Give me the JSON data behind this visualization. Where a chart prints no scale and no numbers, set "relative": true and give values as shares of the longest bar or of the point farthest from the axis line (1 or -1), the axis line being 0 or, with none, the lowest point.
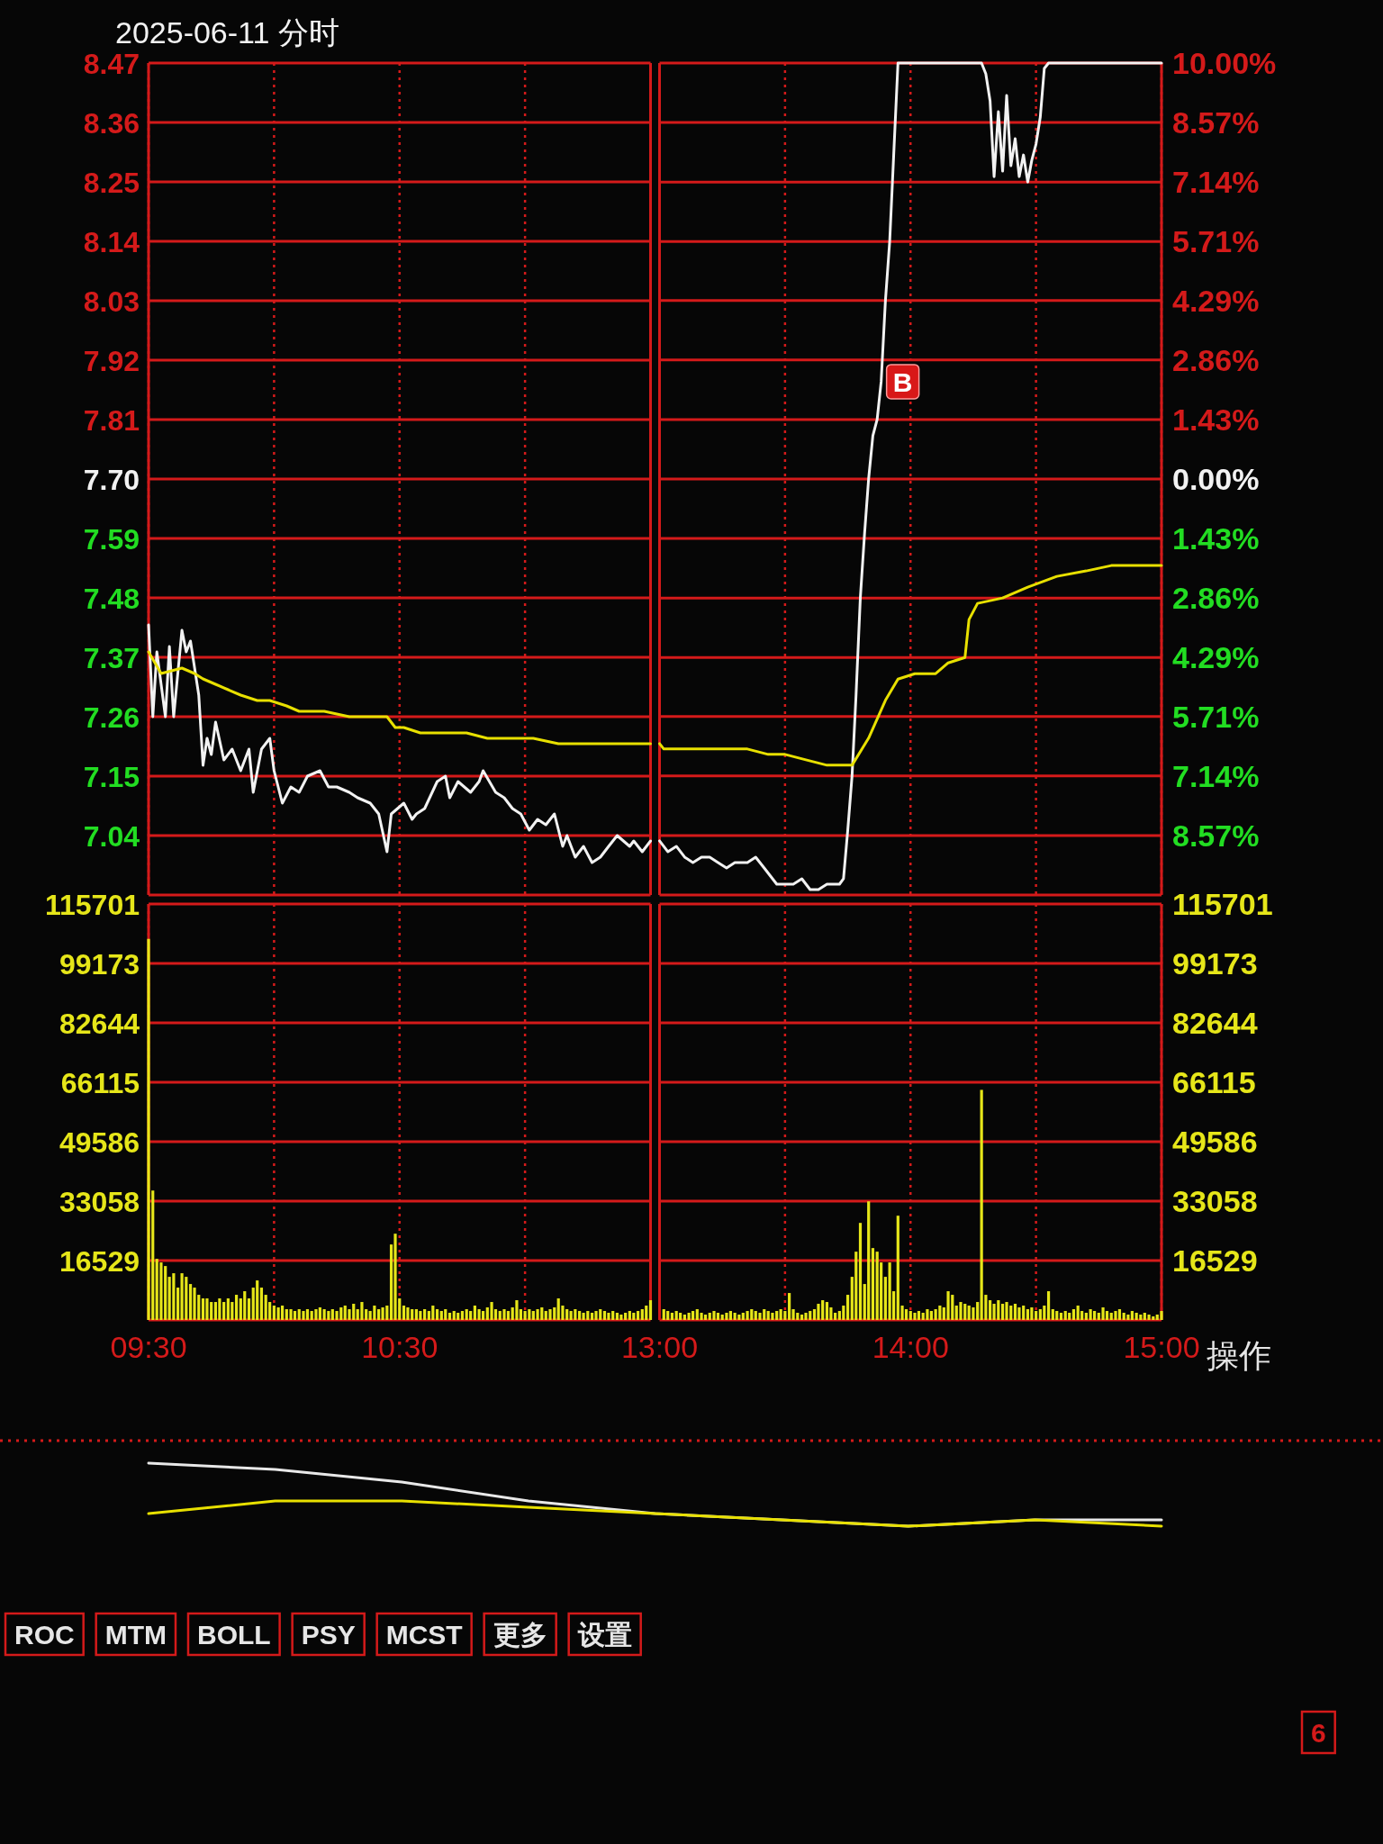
{
  "chart_data": [
    {
      "type": "line",
      "title": "2025-06-11 分时",
      "series": [
        {
          "color": "#f2f2f2",
          "x": [
            9.5,
            9.517,
            9.533,
            9.567,
            9.583,
            9.6,
            9.633,
            9.65,
            9.667,
            9.7,
            9.717,
            9.733,
            9.75,
            9.767,
            9.8,
            9.833,
            9.867,
            9.9,
            9.917,
            9.95,
            9.983,
            10,
            10.033,
            10.067,
            10.1,
            10.133,
            10.183,
            10.217,
            10.25,
            10.3,
            10.333,
            10.383,
            10.417,
            10.45,
            10.467,
            10.517,
            10.55,
            10.567,
            10.6,
            10.65,
            10.683,
            10.7,
            10.733,
            10.783,
            10.817,
            10.833,
            10.883,
            10.917,
            10.95,
            10.983,
            11.017,
            11.05,
            11.083,
            11.117,
            11.15,
            11.167,
            11.2,
            11.233,
            11.267,
            11.3,
            11.333,
            11.367,
            11.417,
            11.433,
            11.467,
            11.5
          ],
          "values": [
            7.43,
            7.26,
            7.38,
            7.26,
            7.39,
            7.26,
            7.42,
            7.38,
            7.4,
            7.3,
            7.17,
            7.22,
            7.19,
            7.25,
            7.18,
            7.2,
            7.16,
            7.2,
            7.12,
            7.2,
            7.22,
            7.16,
            7.1,
            7.13,
            7.12,
            7.15,
            7.16,
            7.13,
            7.13,
            7.12,
            7.11,
            7.1,
            7.08,
            7.01,
            7.08,
            7.1,
            7.07,
            7.08,
            7.09,
            7.14,
            7.15,
            7.11,
            7.14,
            7.12,
            7.14,
            7.16,
            7.12,
            7.11,
            7.09,
            7.08,
            7.05,
            7.07,
            7.06,
            7.08,
            7.02,
            7.04,
            7.0,
            7.02,
            6.99,
            7.0,
            7.02,
            7.04,
            7.02,
            7.03,
            7.01,
            7.03
          ]
        },
        {
          "color": "#e8e000",
          "x": [
            9.5,
            9.55,
            9.633,
            9.683,
            9.717,
            9.767,
            9.817,
            9.867,
            9.933,
            9.983,
            10.05,
            10.1,
            10.2,
            10.3,
            10.4,
            10.45,
            10.483,
            10.517,
            10.583,
            10.667,
            10.767,
            10.85,
            10.95,
            11.033,
            11.133,
            11.233,
            11.317,
            11.417,
            11.5
          ],
          "values": [
            7.38,
            7.34,
            7.35,
            7.34,
            7.33,
            7.32,
            7.31,
            7.3,
            7.29,
            7.29,
            7.28,
            7.27,
            7.27,
            7.26,
            7.26,
            7.26,
            7.24,
            7.24,
            7.23,
            7.23,
            7.23,
            7.22,
            7.22,
            7.22,
            7.21,
            7.21,
            7.21,
            7.21,
            7.21
          ]
        }
      ],
      "xlim": [
        9.5,
        11.5
      ],
      "xticks": [
        {
          "value": 9.5,
          "label": null
        },
        {
          "value": 10,
          "label": null
        },
        {
          "value": 10.5,
          "label": null
        },
        {
          "value": 11,
          "label": null
        }
      ],
      "ylim": [
        6.93,
        8.47
      ],
      "yticks": [
        8.47,
        8.36,
        8.25,
        8.14,
        8.03,
        7.92,
        7.81,
        {
          "value": 7.7,
          "label": "7.70"
        },
        7.59,
        7.48,
        7.37,
        7.26,
        7.15,
        7.04,
        {
          "value": 6.93,
          "label": null
        }
      ],
      "grid": true,
      "tick_labels": "y"
    },
    {
      "type": "line",
      "series": [
        {
          "color": "#f2f2f2",
          "x": [
            13,
            13.033,
            13.067,
            13.1,
            13.133,
            13.167,
            13.2,
            13.233,
            13.267,
            13.3,
            13.35,
            13.383,
            13.417,
            13.467,
            13.5,
            13.533,
            13.567,
            13.6,
            13.633,
            13.667,
            13.717,
            13.733,
            13.75,
            13.767,
            13.783,
            13.8,
            13.817,
            13.833,
            13.85,
            13.867,
            13.883,
            13.9,
            13.917,
            13.933,
            13.95,
            14.283,
            14.3,
            14.317,
            14.333,
            14.35,
            14.367,
            14.383,
            14.4,
            14.417,
            14.433,
            14.45,
            14.467,
            14.483,
            14.5,
            14.517,
            14.533,
            14.55,
            15
          ],
          "values": [
            -8.7,
            -8.96,
            -8.83,
            -9.09,
            -9.22,
            -9.09,
            -9.09,
            -9.22,
            -9.35,
            -9.22,
            -9.22,
            -9.09,
            -9.35,
            -9.74,
            -9.74,
            -9.74,
            -9.61,
            -9.87,
            -9.87,
            -9.74,
            -9.74,
            -9.61,
            -8.44,
            -7.14,
            -5.19,
            -2.86,
            -1.3,
            0,
            1.04,
            1.43,
            2.34,
            4.29,
            5.71,
            7.79,
            10,
            10,
            9.74,
            9.09,
            7.27,
            8.83,
            7.4,
            9.22,
            7.53,
            8.18,
            7.27,
            7.79,
            7.14,
            7.66,
            8.05,
            8.7,
            9.87,
            10,
            10
          ]
        },
        {
          "color": "#e8e000",
          "x": [
            13,
            13.017,
            13.1,
            13.183,
            13.267,
            13.35,
            13.433,
            13.5,
            13.583,
            13.667,
            13.767,
            13.833,
            13.9,
            13.95,
            14.017,
            14.1,
            14.15,
            14.217,
            14.233,
            14.267,
            14.367,
            14.467,
            14.583,
            14.7,
            14.8,
            15
          ],
          "values": [
            -6.36,
            -6.49,
            -6.49,
            -6.49,
            -6.49,
            -6.49,
            -6.62,
            -6.62,
            -6.75,
            -6.88,
            -6.88,
            -6.23,
            -5.32,
            -4.81,
            -4.68,
            -4.68,
            -4.42,
            -4.29,
            -3.38,
            -2.99,
            -2.86,
            -2.6,
            -2.34,
            -2.21,
            -2.08,
            -2.08
          ]
        }
      ],
      "xlim": [
        13,
        15
      ],
      "xticks": [
        {
          "value": 13,
          "label": null
        },
        {
          "value": 13.5,
          "label": null
        },
        {
          "value": 14,
          "label": null
        },
        {
          "value": 14.5,
          "label": null
        },
        {
          "value": 15,
          "label": null
        }
      ],
      "ylim": [
        -10,
        10
      ],
      "yticks": [
        {
          "value": 10,
          "label": "10.00%"
        },
        {
          "value": 8.57,
          "label": "8.57%"
        },
        {
          "value": 7.14,
          "label": "7.14%"
        },
        {
          "value": 5.71,
          "label": "5.71%"
        },
        {
          "value": 4.29,
          "label": "4.29%"
        },
        {
          "value": 2.86,
          "label": "2.86%"
        },
        {
          "value": 1.43,
          "label": "1.43%"
        },
        {
          "value": 0,
          "label": "0.00%"
        },
        {
          "value": -1.43,
          "label": "1.43%"
        },
        {
          "value": -2.86,
          "label": "2.86%"
        },
        {
          "value": -4.29,
          "label": "4.29%"
        },
        {
          "value": -5.71,
          "label": "5.71%"
        },
        {
          "value": -7.14,
          "label": "7.14%"
        },
        {
          "value": -8.57,
          "label": "8.57%"
        },
        {
          "value": -10,
          "label": null
        }
      ],
      "grid": true,
      "tick_labels": "y",
      "annotations": [
        {
          "text": "B",
          "x": 13.883,
          "y": 2.34
        }
      ]
    },
    {
      "type": "bar",
      "color": "#e6e619",
      "x": [
        9.5,
        9.517,
        9.533,
        9.55,
        9.567,
        9.583,
        9.6,
        9.617,
        9.633,
        9.65,
        9.667,
        9.683,
        9.7,
        9.717,
        9.733,
        9.75,
        9.767,
        9.783,
        9.8,
        9.817,
        9.833,
        9.85,
        9.867,
        9.883,
        9.9,
        9.917,
        9.933,
        9.95,
        9.967,
        9.983,
        10,
        10.017,
        10.033,
        10.05,
        10.067,
        10.083,
        10.1,
        10.117,
        10.133,
        10.15,
        10.167,
        10.183,
        10.2,
        10.217,
        10.233,
        10.25,
        10.267,
        10.283,
        10.3,
        10.317,
        10.333,
        10.35,
        10.367,
        10.383,
        10.4,
        10.417,
        10.433,
        10.45,
        10.467,
        10.483,
        10.5,
        10.517,
        10.533,
        10.55,
        10.567,
        10.583,
        10.6,
        10.617,
        10.633,
        10.65,
        10.667,
        10.683,
        10.7,
        10.717,
        10.733,
        10.75,
        10.767,
        10.783,
        10.8,
        10.817,
        10.833,
        10.85,
        10.867,
        10.883,
        10.9,
        10.917,
        10.933,
        10.95,
        10.967,
        10.983,
        11,
        11.017,
        11.033,
        11.05,
        11.067,
        11.083,
        11.1,
        11.117,
        11.133,
        11.15,
        11.167,
        11.183,
        11.2,
        11.217,
        11.233,
        11.25,
        11.267,
        11.283,
        11.3,
        11.317,
        11.333,
        11.35,
        11.367,
        11.383,
        11.4,
        11.417,
        11.433,
        11.45,
        11.467,
        11.483,
        11.5
      ],
      "values": [
        106000,
        36000,
        17000,
        16000,
        15000,
        12000,
        13000,
        9000,
        13000,
        12000,
        10000,
        9000,
        7000,
        6000,
        6000,
        5000,
        5000,
        6000,
        5000,
        6000,
        5000,
        7000,
        6000,
        8000,
        6000,
        9000,
        11000,
        9000,
        7000,
        5000,
        4000,
        3500,
        4000,
        3000,
        3000,
        2500,
        3000,
        2500,
        3000,
        2500,
        3000,
        3500,
        3000,
        2500,
        3000,
        2500,
        3500,
        4000,
        3000,
        4500,
        3000,
        5000,
        3000,
        2500,
        4000,
        3000,
        3500,
        4000,
        21000,
        24000,
        6000,
        4000,
        3500,
        3000,
        3000,
        2500,
        3000,
        2500,
        4000,
        3000,
        2500,
        3000,
        2000,
        2500,
        2000,
        2500,
        3000,
        2500,
        4000,
        3000,
        2500,
        3500,
        5000,
        3000,
        2500,
        3000,
        2500,
        3500,
        5500,
        3000,
        2500,
        3000,
        2500,
        3000,
        3500,
        2500,
        3000,
        3500,
        6000,
        4000,
        3000,
        2500,
        3000,
        2500,
        2000,
        2500,
        2000,
        2500,
        3000,
        2500,
        2000,
        2500,
        2000,
        1500,
        2000,
        2500,
        2000,
        2500,
        3000,
        4000,
        5500
      ],
      "xlim": [
        9.5,
        11.5
      ],
      "xticks": [
        {
          "value": 9.5,
          "label": "09:30"
        },
        {
          "value": 10,
          "label": null
        },
        {
          "value": 10.5,
          "label": "10:30"
        },
        {
          "value": 11,
          "label": null
        }
      ],
      "ylim": [
        0,
        115701
      ],
      "yticks": [
        115701,
        99173,
        82644,
        66115,
        49586,
        33058,
        16529,
        {
          "value": 0,
          "label": null
        }
      ],
      "grid": true
    },
    {
      "type": "bar",
      "color": "#e6e619",
      "x": [
        13.017,
        13.033,
        13.05,
        13.067,
        13.083,
        13.1,
        13.117,
        13.133,
        13.15,
        13.167,
        13.183,
        13.2,
        13.217,
        13.233,
        13.25,
        13.267,
        13.283,
        13.3,
        13.317,
        13.333,
        13.35,
        13.367,
        13.383,
        13.4,
        13.417,
        13.433,
        13.45,
        13.467,
        13.483,
        13.5,
        13.517,
        13.533,
        13.55,
        13.567,
        13.583,
        13.6,
        13.617,
        13.633,
        13.65,
        13.667,
        13.683,
        13.7,
        13.717,
        13.733,
        13.75,
        13.767,
        13.783,
        13.8,
        13.817,
        13.833,
        13.85,
        13.867,
        13.883,
        13.9,
        13.917,
        13.933,
        13.95,
        13.967,
        13.983,
        14,
        14.017,
        14.033,
        14.05,
        14.067,
        14.083,
        14.1,
        14.117,
        14.133,
        14.15,
        14.167,
        14.183,
        14.2,
        14.217,
        14.233,
        14.25,
        14.267,
        14.283,
        14.3,
        14.317,
        14.333,
        14.35,
        14.367,
        14.383,
        14.4,
        14.417,
        14.433,
        14.45,
        14.467,
        14.483,
        14.5,
        14.517,
        14.533,
        14.55,
        14.567,
        14.583,
        14.6,
        14.617,
        14.633,
        14.65,
        14.667,
        14.683,
        14.7,
        14.717,
        14.733,
        14.75,
        14.767,
        14.783,
        14.8,
        14.817,
        14.833,
        14.85,
        14.867,
        14.883,
        14.9,
        14.917,
        14.933,
        14.95,
        14.967,
        14.983,
        15
      ],
      "values": [
        3000,
        2500,
        2000,
        2500,
        2000,
        1500,
        2000,
        2500,
        3000,
        2000,
        1500,
        2000,
        2500,
        2000,
        1500,
        2000,
        2500,
        2000,
        1500,
        2000,
        2500,
        3000,
        2500,
        2000,
        3000,
        2500,
        2000,
        2500,
        3000,
        2500,
        7500,
        3000,
        2000,
        1500,
        2000,
        2500,
        3000,
        4500,
        5500,
        5000,
        3500,
        2000,
        2500,
        4000,
        7000,
        12000,
        19000,
        27000,
        10000,
        33000,
        20000,
        19000,
        16000,
        12000,
        16000,
        8000,
        29000,
        4000,
        3000,
        2500,
        2000,
        2500,
        2000,
        3000,
        2500,
        3000,
        4000,
        3500,
        8000,
        7000,
        4000,
        5000,
        4500,
        4000,
        3500,
        5000,
        64000,
        7000,
        5500,
        4500,
        5500,
        4500,
        5000,
        4000,
        4500,
        3500,
        4000,
        3000,
        3500,
        2500,
        3000,
        4000,
        8000,
        3000,
        2500,
        2000,
        2500,
        2000,
        3000,
        4000,
        2500,
        2000,
        3000,
        2500,
        2000,
        3500,
        2500,
        2000,
        2500,
        3000,
        2000,
        1500,
        2500,
        2000,
        1500,
        2000,
        1500,
        1000,
        1500,
        2500
      ],
      "xlim": [
        13,
        15
      ],
      "xticks": [
        {
          "value": 13,
          "label": "13:00"
        },
        {
          "value": 13.5,
          "label": null
        },
        {
          "value": 14,
          "label": "14:00"
        },
        {
          "value": 14.5,
          "label": null
        },
        {
          "value": 15,
          "label": "15:00"
        }
      ],
      "ylim": [
        0,
        115701
      ],
      "yticks": [
        115701,
        99173,
        82644,
        66115,
        49586,
        33058,
        16529,
        {
          "value": 0,
          "label": null
        }
      ],
      "grid": true,
      "annotations": [
        "操作"
      ]
    },
    {
      "type": "line",
      "relative": true,
      "categories": [
        null,
        null,
        null,
        null,
        null,
        null,
        null,
        null,
        null
      ],
      "series": [
        {
          "color": "#e8e8e8",
          "values": [
            1,
            0.9,
            0.7,
            0.4,
            0.2,
            0.1,
            0,
            0.1,
            0.1
          ]
        },
        {
          "color": "#e8e000",
          "values": [
            0.2,
            0.4,
            0.4,
            0.3,
            0.2,
            0.1,
            0,
            0.1,
            0
          ]
        }
      ],
      "annotations": [
        "ROC",
        "MTM",
        "BOLL",
        "PSY",
        "MCST",
        "更多",
        "设置",
        "6"
      ]
    }
  ]
}
